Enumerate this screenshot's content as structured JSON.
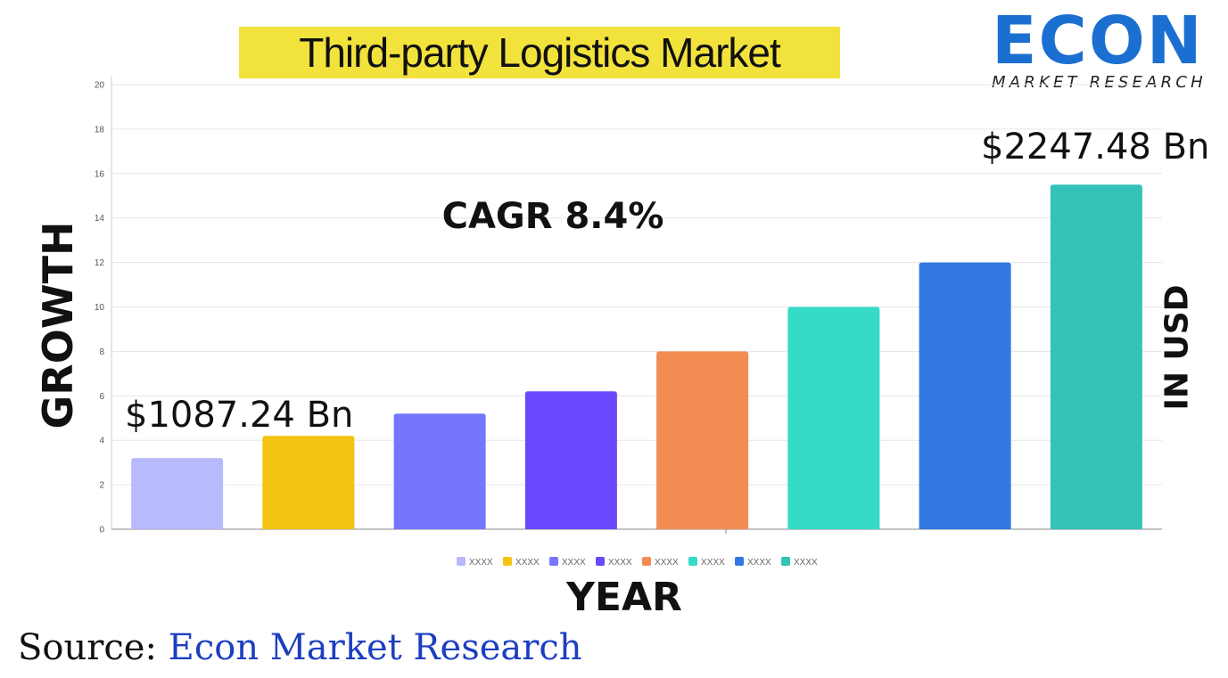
{
  "title": "Third-party Logistics Market",
  "logo": {
    "word": "ECON",
    "subtitle": "MARKET RESEARCH",
    "color": "#1b6fd1"
  },
  "annotations": {
    "cagr": "CAGR 8.4%",
    "start_value": "$1087.24 Bn",
    "end_value": "$2247.48 Bn"
  },
  "labels": {
    "y_left": "GROWTH",
    "y_right": "IN USD",
    "x": "YEAR"
  },
  "source": {
    "prefix": "Source: ",
    "name": "Econ Market Research"
  },
  "chart_data": {
    "type": "bar",
    "categories": [
      "XXXX",
      "XXXX",
      "XXXX",
      "XXXX",
      "XXXX",
      "XXXX",
      "XXXX",
      "XXXX"
    ],
    "values": [
      3.2,
      4.2,
      5.2,
      6.2,
      8.0,
      10.0,
      12.0,
      15.5
    ],
    "colors": [
      "#b9b9fd",
      "#f2c311",
      "#7676fc",
      "#6a48fd",
      "#f38c53",
      "#36dac8",
      "#3378e0",
      "#35c2b9"
    ],
    "ylim": [
      0,
      20
    ],
    "yticks": [
      0,
      2,
      4,
      6,
      8,
      10,
      12,
      14,
      16,
      18,
      20
    ],
    "grid": true,
    "legend": "bottom",
    "xlabel": "YEAR",
    "ylabel": "GROWTH"
  }
}
